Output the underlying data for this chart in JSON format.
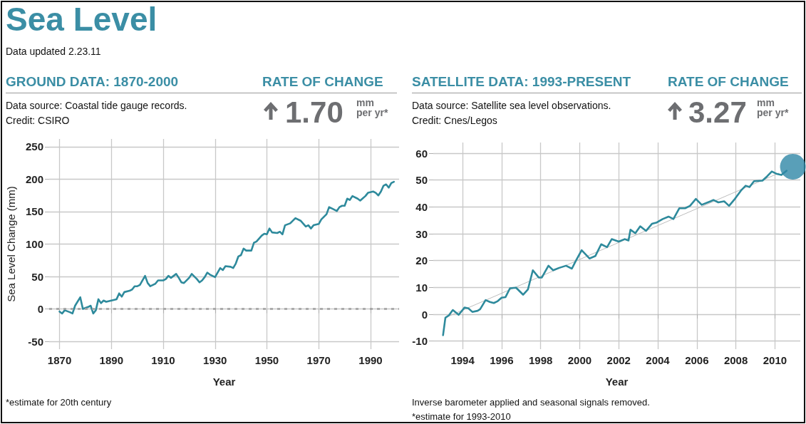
{
  "chart_data": [
    {
      "type": "line",
      "title": "GROUND DATA: 1870-2000",
      "subtitle": "Data source: Coastal tide gauge records.\nCredit: CSIRO",
      "xlabel": "Year",
      "ylabel": "Sea Level Change (mm)",
      "annotations": [
        "Sea Level",
        "Data updated 2.23.11",
        "RATE OF CHANGE",
        "1.70",
        "mm",
        "per yr*",
        "*estimate for 20th century"
      ],
      "xlim": [
        1866,
        2001
      ],
      "xticks": [
        1870,
        1890,
        1910,
        1930,
        1950,
        1970,
        1990
      ],
      "ylim": [
        -62,
        262
      ],
      "yticks": [
        -50,
        0,
        50,
        100,
        150,
        200,
        250
      ],
      "grid": true,
      "marker": "none",
      "line_style": "solid",
      "ref_lines": [
        {
          "axis": "y",
          "value": 0,
          "color": "#a0a0a0",
          "line_style": "dotted"
        }
      ],
      "series": [
        {
          "color": "#2e8a9c",
          "x": [
            1870,
            1871,
            1872,
            1874,
            1875,
            1876,
            1878,
            1879,
            1881,
            1882,
            1883,
            1884,
            1885,
            1886,
            1887,
            1888,
            1890,
            1892,
            1893,
            1894,
            1895,
            1897,
            1898,
            1899,
            1900,
            1901,
            1903,
            1904,
            1905,
            1907,
            1908,
            1910,
            1911,
            1912,
            1913,
            1915,
            1916,
            1917,
            1918,
            1920,
            1921,
            1923,
            1924,
            1925,
            1926,
            1927,
            1928,
            1930,
            1932,
            1933,
            1934,
            1936,
            1937,
            1938,
            1939,
            1940,
            1941,
            1942,
            1944,
            1945,
            1946,
            1948,
            1949,
            1950,
            1951,
            1952,
            1954,
            1955,
            1956,
            1957,
            1959,
            1961,
            1963,
            1965,
            1966,
            1967,
            1968,
            1970,
            1971,
            1973,
            1974,
            1975,
            1977,
            1978,
            1979,
            1980,
            1981,
            1982,
            1983,
            1985,
            1986,
            1988,
            1989,
            1991,
            1992,
            1993,
            1994,
            1995,
            1996,
            1997,
            1998,
            1999
          ],
          "values": [
            -4,
            -7,
            -2,
            -5,
            -7,
            5,
            18,
            0,
            3,
            5,
            -7,
            -2,
            15,
            9,
            13,
            11,
            13,
            15,
            24,
            19,
            26,
            28,
            30,
            35,
            35,
            37,
            51,
            40,
            35,
            39,
            44,
            44,
            46,
            51,
            48,
            54,
            48,
            41,
            40,
            48,
            54,
            46,
            41,
            44,
            49,
            56,
            53,
            49,
            63,
            60,
            66,
            65,
            63,
            70,
            81,
            83,
            93,
            90,
            90,
            102,
            104,
            113,
            116,
            115,
            124,
            118,
            117,
            119,
            115,
            129,
            132,
            140,
            136,
            127,
            129,
            124,
            129,
            131,
            138,
            146,
            157,
            155,
            151,
            157,
            159,
            159,
            170,
            168,
            174,
            170,
            167,
            174,
            179,
            181,
            179,
            175,
            181,
            190,
            192,
            187,
            194,
            196
          ]
        }
      ]
    },
    {
      "type": "line",
      "title": "SATELLITE DATA: 1993-PRESENT",
      "subtitle": "Data source: Satellite sea level observations.\nCredit: Cnes/Legos",
      "xlabel": "Year",
      "annotations": [
        "RATE OF CHANGE",
        "3.27",
        "mm",
        "per yr*",
        "Inverse barometer applied and seasonal signals removed.",
        "*estimate for 1993-2010"
      ],
      "xlim": [
        1992.5,
        2011.3
      ],
      "xticks": [
        1994,
        1996,
        1998,
        2000,
        2002,
        2004,
        2006,
        2008,
        2010
      ],
      "ylim": [
        -13,
        64
      ],
      "yticks": [
        -10,
        0,
        10,
        20,
        30,
        40,
        50,
        60
      ],
      "grid": true,
      "line_style": "solid",
      "series": [
        {
          "color": "#2e8a9c",
          "marker": "none",
          "x": [
            1993.0,
            1993.12,
            1993.3,
            1993.5,
            1993.8,
            1994.1,
            1994.3,
            1994.5,
            1994.77,
            1994.9,
            1995.18,
            1995.4,
            1995.6,
            1995.8,
            1996.0,
            1996.2,
            1996.43,
            1996.74,
            1997.1,
            1997.35,
            1997.6,
            1997.9,
            1998.06,
            1998.4,
            1998.64,
            1998.95,
            1999.3,
            1999.6,
            1999.8,
            2000.1,
            2000.5,
            2000.8,
            2001.1,
            2001.4,
            2001.64,
            2002.0,
            2002.3,
            2002.5,
            2002.6,
            2002.85,
            2003.1,
            2003.4,
            2003.7,
            2003.95,
            2004.25,
            2004.55,
            2004.8,
            2005.1,
            2005.4,
            2005.65,
            2005.95,
            2006.25,
            2006.7,
            2006.85,
            2007.1,
            2007.4,
            2007.65,
            2007.95,
            2008.26,
            2008.5,
            2008.7,
            2008.93,
            2009.36,
            2009.6,
            2009.84,
            2010.1,
            2010.33,
            2010.6
          ],
          "values": [
            -7.8,
            -1.3,
            -0.4,
            1.6,
            -0.2,
            2.5,
            2.2,
            0.9,
            1.3,
            1.9,
            5.3,
            4.6,
            4.2,
            4.9,
            6.2,
            6.4,
            9.7,
            9.9,
            7.3,
            9.3,
            16.4,
            13.7,
            13.7,
            18.1,
            16.4,
            17.3,
            18.1,
            17.0,
            19.9,
            23.9,
            20.8,
            21.7,
            26.1,
            25.0,
            28.0,
            27.1,
            28.0,
            27.5,
            31.5,
            30.2,
            32.8,
            31.1,
            33.7,
            34.2,
            35.5,
            36.4,
            35.5,
            39.5,
            39.5,
            40.4,
            43.0,
            40.8,
            42.1,
            42.6,
            41.7,
            42.1,
            40.4,
            43.0,
            46.1,
            47.9,
            47.4,
            49.6,
            49.8,
            51.4,
            53.2,
            52.3,
            51.9,
            53.5
          ]
        },
        {
          "type": "line",
          "color": "#bdbdbd",
          "marker": "none",
          "x": [
            1993.2,
            2010.2
          ],
          "values": [
            -1,
            52.6
          ]
        },
        {
          "type": "scatter",
          "color": "#2f87a6",
          "marker": "circle",
          "x": [
            2010.92
          ],
          "values": [
            55
          ]
        }
      ]
    }
  ]
}
